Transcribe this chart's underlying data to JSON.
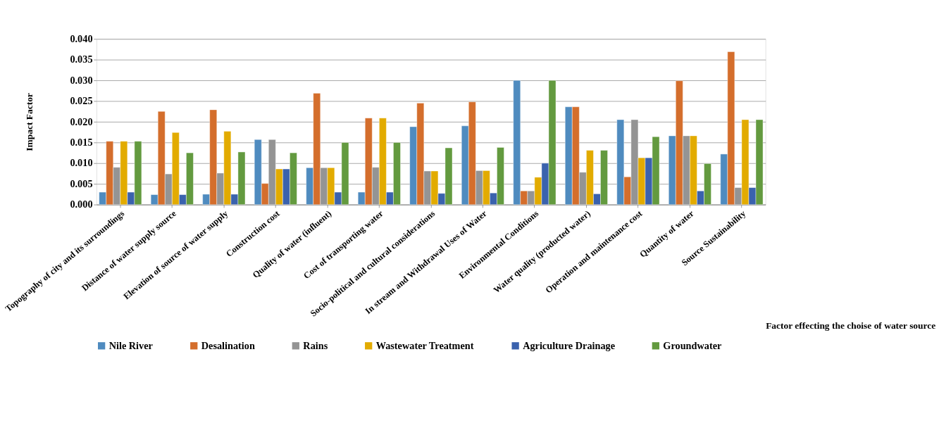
{
  "chart_data": {
    "type": "bar",
    "xlabel": "Factor effecting the choise of water source",
    "ylabel": "Impact Factor",
    "categories": [
      "Topography of city and its surroundings",
      "Distance of water supply source",
      "Elevation of source of water supply",
      "Construction cost",
      "Quality of water (influent)",
      "Cost of transporting water",
      "Socio-political and cultural considerations",
      "In stream and Withdrawal Uses of Water",
      "Environmental Conditions",
      "Water quality (producted water)",
      "Operation and maintenance cost",
      "Quantity of water",
      "Source Sustainability"
    ],
    "series": [
      {
        "name": "Nile River",
        "color": "#4f8bbf",
        "values": [
          0.003,
          0.0024,
          0.0025,
          0.0157,
          0.0089,
          0.003,
          0.0188,
          0.019,
          0.03,
          0.0236,
          0.0205,
          0.0166,
          0.0122
        ]
      },
      {
        "name": "Desalination",
        "color": "#d46e2c",
        "values": [
          0.0153,
          0.0225,
          0.0229,
          0.0051,
          0.0269,
          0.0209,
          0.0245,
          0.0248,
          0.0033,
          0.0236,
          0.0067,
          0.0299,
          0.0369
        ]
      },
      {
        "name": "Rains",
        "color": "#949494",
        "values": [
          0.009,
          0.0074,
          0.0076,
          0.0157,
          0.0089,
          0.009,
          0.0081,
          0.0082,
          0.0033,
          0.0078,
          0.0205,
          0.0166,
          0.0041
        ]
      },
      {
        "name": "Wastewater Treatment",
        "color": "#e2ab00",
        "values": [
          0.0153,
          0.0174,
          0.0177,
          0.0086,
          0.0089,
          0.0209,
          0.0081,
          0.0082,
          0.0066,
          0.0131,
          0.0113,
          0.0166,
          0.0205
        ]
      },
      {
        "name": "Agriculture Drainage",
        "color": "#3a62ad",
        "values": [
          0.003,
          0.0024,
          0.0025,
          0.0086,
          0.003,
          0.003,
          0.0027,
          0.0028,
          0.01,
          0.0026,
          0.0113,
          0.0033,
          0.0041
        ]
      },
      {
        "name": "Groundwater",
        "color": "#639a3f",
        "values": [
          0.0153,
          0.0125,
          0.0127,
          0.0125,
          0.015,
          0.015,
          0.0137,
          0.0138,
          0.03,
          0.0131,
          0.0164,
          0.0099,
          0.0205
        ]
      }
    ],
    "ylim": [
      0,
      0.04
    ],
    "yticks": [
      {
        "value": 0,
        "label": "0.000"
      },
      {
        "value": 0.005,
        "label": "0.005"
      },
      {
        "value": 0.01,
        "label": "0.010"
      },
      {
        "value": 0.015,
        "label": "0.015"
      },
      {
        "value": 0.02,
        "label": "0.020"
      },
      {
        "value": 0.025,
        "label": "0.025"
      },
      {
        "value": 0.03,
        "label": "0.030"
      },
      {
        "value": 0.035,
        "label": "0.035"
      },
      {
        "value": 0.04,
        "label": "0.040"
      }
    ],
    "grid": "y",
    "legend": "bottom"
  }
}
